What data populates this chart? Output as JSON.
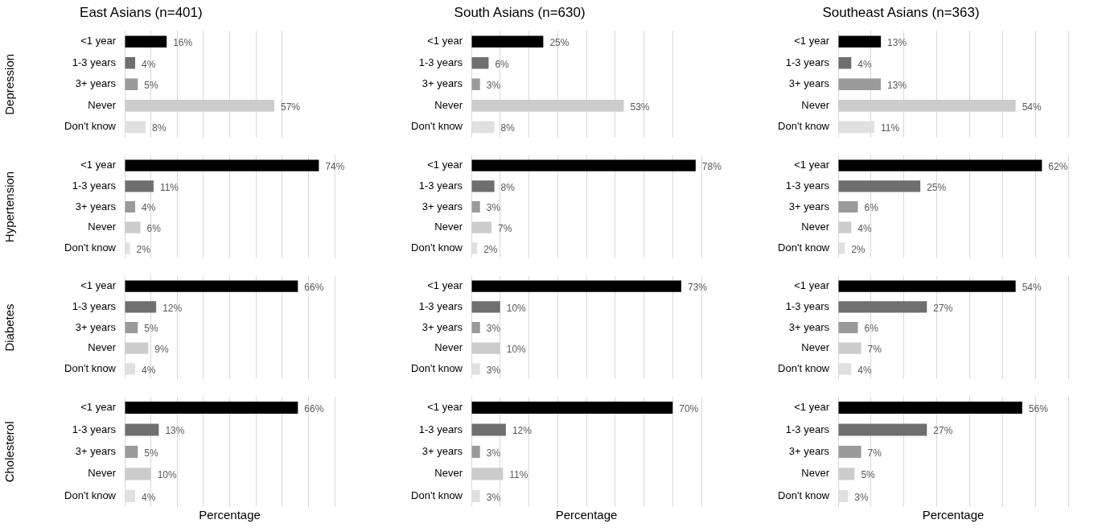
{
  "chart_data": [
    {
      "type": "bar",
      "orientation": "horizontal",
      "title": "East Asians (n=401)",
      "ylabel": "Depression",
      "categories": [
        "<1 year",
        "1-3 years",
        "3+ years",
        "Never",
        "Don't know"
      ],
      "values": [
        16,
        4,
        5,
        57,
        8
      ],
      "value_labels": [
        "16%",
        "4%",
        "5%",
        "57%",
        "8%"
      ],
      "colors": [
        "#000000",
        "#6f6f6f",
        "#9a9a9a",
        "#cccccc",
        "#e0e0e0"
      ],
      "xlim": [
        0,
        60
      ],
      "xticks": [
        {
          "value": 0,
          "label": null
        },
        {
          "value": 10,
          "label": null
        },
        {
          "value": 20,
          "label": null
        },
        {
          "value": 30,
          "label": null
        },
        {
          "value": 40,
          "label": null
        },
        {
          "value": 50,
          "label": null
        },
        {
          "value": 60,
          "label": null
        }
      ],
      "grid": "x",
      "tick_labels": "y"
    },
    {
      "type": "bar",
      "orientation": "horizontal",
      "title": "South Asians (n=630)",
      "categories": [
        "<1 year",
        "1-3 years",
        "3+ years",
        "Never",
        "Don't know"
      ],
      "values": [
        25,
        6,
        3,
        53,
        8
      ],
      "value_labels": [
        "25%",
        "6%",
        "3%",
        "53%",
        "8%"
      ],
      "colors": [
        "#000000",
        "#6f6f6f",
        "#9a9a9a",
        "#cccccc",
        "#e0e0e0"
      ],
      "xlim": [
        0,
        70
      ],
      "xticks": [
        {
          "value": 0,
          "label": null
        },
        {
          "value": 10,
          "label": null
        },
        {
          "value": 20,
          "label": null
        },
        {
          "value": 30,
          "label": null
        },
        {
          "value": 40,
          "label": null
        },
        {
          "value": 50,
          "label": null
        },
        {
          "value": 60,
          "label": null
        },
        {
          "value": 70,
          "label": null
        }
      ],
      "grid": "x",
      "tick_labels": "y"
    },
    {
      "type": "bar",
      "orientation": "horizontal",
      "title": "Southeast Asians (n=363)",
      "categories": [
        "<1 year",
        "1-3 years",
        "3+ years",
        "Never",
        "Don't know"
      ],
      "values": [
        13,
        4,
        13,
        54,
        11
      ],
      "value_labels": [
        "13%",
        "4%",
        "13%",
        "54%",
        "11%"
      ],
      "colors": [
        "#000000",
        "#6f6f6f",
        "#9a9a9a",
        "#cccccc",
        "#e0e0e0"
      ],
      "xlim": [
        0,
        70
      ],
      "xticks": [
        {
          "value": 0,
          "label": null
        },
        {
          "value": 10,
          "label": null
        },
        {
          "value": 20,
          "label": null
        },
        {
          "value": 30,
          "label": null
        },
        {
          "value": 40,
          "label": null
        },
        {
          "value": 50,
          "label": null
        },
        {
          "value": 60,
          "label": null
        },
        {
          "value": 70,
          "label": null
        }
      ],
      "grid": "x",
      "tick_labels": "y"
    },
    {
      "type": "bar",
      "orientation": "horizontal",
      "ylabel": "Hypertension",
      "categories": [
        "<1 year",
        "1-3 years",
        "3+ years",
        "Never",
        "Don't know"
      ],
      "values": [
        74,
        11,
        4,
        6,
        2
      ],
      "value_labels": [
        "74%",
        "11%",
        "4%",
        "6%",
        "2%"
      ],
      "colors": [
        "#000000",
        "#6f6f6f",
        "#9a9a9a",
        "#cccccc",
        "#e0e0e0"
      ],
      "xlim": [
        0,
        80
      ],
      "xticks": [
        {
          "value": 0,
          "label": null
        },
        {
          "value": 10,
          "label": null
        },
        {
          "value": 20,
          "label": null
        },
        {
          "value": 30,
          "label": null
        },
        {
          "value": 40,
          "label": null
        },
        {
          "value": 50,
          "label": null
        },
        {
          "value": 60,
          "label": null
        },
        {
          "value": 70,
          "label": null
        },
        {
          "value": 80,
          "label": null
        }
      ],
      "grid": "x",
      "tick_labels": "y"
    },
    {
      "type": "bar",
      "orientation": "horizontal",
      "categories": [
        "<1 year",
        "1-3 years",
        "3+ years",
        "Never",
        "Don't know"
      ],
      "values": [
        78,
        8,
        3,
        7,
        2
      ],
      "value_labels": [
        "78%",
        "8%",
        "3%",
        "7%",
        "2%"
      ],
      "colors": [
        "#000000",
        "#6f6f6f",
        "#9a9a9a",
        "#cccccc",
        "#e0e0e0"
      ],
      "xlim": [
        0,
        80
      ],
      "xticks": [
        {
          "value": 0,
          "label": null
        },
        {
          "value": 10,
          "label": null
        },
        {
          "value": 20,
          "label": null
        },
        {
          "value": 30,
          "label": null
        },
        {
          "value": 40,
          "label": null
        },
        {
          "value": 50,
          "label": null
        },
        {
          "value": 60,
          "label": null
        },
        {
          "value": 70,
          "label": null
        },
        {
          "value": 80,
          "label": null
        }
      ],
      "grid": "x",
      "tick_labels": "y"
    },
    {
      "type": "bar",
      "orientation": "horizontal",
      "categories": [
        "<1 year",
        "1-3 years",
        "3+ years",
        "Never",
        "Don't know"
      ],
      "values": [
        62,
        25,
        6,
        4,
        2
      ],
      "value_labels": [
        "62%",
        "25%",
        "6%",
        "4%",
        "2%"
      ],
      "colors": [
        "#000000",
        "#6f6f6f",
        "#9a9a9a",
        "#cccccc",
        "#e0e0e0"
      ],
      "xlim": [
        0,
        70
      ],
      "xticks": [
        {
          "value": 0,
          "label": null
        },
        {
          "value": 10,
          "label": null
        },
        {
          "value": 20,
          "label": null
        },
        {
          "value": 30,
          "label": null
        },
        {
          "value": 40,
          "label": null
        },
        {
          "value": 50,
          "label": null
        },
        {
          "value": 60,
          "label": null
        },
        {
          "value": 70,
          "label": null
        }
      ],
      "grid": "x",
      "tick_labels": "y"
    },
    {
      "type": "bar",
      "orientation": "horizontal",
      "ylabel": "Diabetes",
      "categories": [
        "<1 year",
        "1-3 years",
        "3+ years",
        "Never",
        "Don't know"
      ],
      "values": [
        66,
        12,
        5,
        9,
        4
      ],
      "value_labels": [
        "66%",
        "12%",
        "5%",
        "9%",
        "4%"
      ],
      "colors": [
        "#000000",
        "#6f6f6f",
        "#9a9a9a",
        "#cccccc",
        "#e0e0e0"
      ],
      "xlim": [
        0,
        80
      ],
      "xticks": [
        {
          "value": 0,
          "label": null
        },
        {
          "value": 10,
          "label": null
        },
        {
          "value": 20,
          "label": null
        },
        {
          "value": 30,
          "label": null
        },
        {
          "value": 40,
          "label": null
        },
        {
          "value": 50,
          "label": null
        },
        {
          "value": 60,
          "label": null
        },
        {
          "value": 70,
          "label": null
        },
        {
          "value": 80,
          "label": null
        }
      ],
      "grid": "x",
      "tick_labels": "y"
    },
    {
      "type": "bar",
      "orientation": "horizontal",
      "categories": [
        "<1 year",
        "1-3 years",
        "3+ years",
        "Never",
        "Don't know"
      ],
      "values": [
        73,
        10,
        3,
        10,
        3
      ],
      "value_labels": [
        "73%",
        "10%",
        "3%",
        "10%",
        "3%"
      ],
      "colors": [
        "#000000",
        "#6f6f6f",
        "#9a9a9a",
        "#cccccc",
        "#e0e0e0"
      ],
      "xlim": [
        0,
        80
      ],
      "xticks": [
        {
          "value": 0,
          "label": null
        },
        {
          "value": 10,
          "label": null
        },
        {
          "value": 20,
          "label": null
        },
        {
          "value": 30,
          "label": null
        },
        {
          "value": 40,
          "label": null
        },
        {
          "value": 50,
          "label": null
        },
        {
          "value": 60,
          "label": null
        },
        {
          "value": 70,
          "label": null
        },
        {
          "value": 80,
          "label": null
        }
      ],
      "grid": "x",
      "tick_labels": "y"
    },
    {
      "type": "bar",
      "orientation": "horizontal",
      "categories": [
        "<1 year",
        "1-3 years",
        "3+ years",
        "Never",
        "Don't know"
      ],
      "values": [
        54,
        27,
        6,
        7,
        4
      ],
      "value_labels": [
        "54%",
        "27%",
        "6%",
        "7%",
        "4%"
      ],
      "colors": [
        "#000000",
        "#6f6f6f",
        "#9a9a9a",
        "#cccccc",
        "#e0e0e0"
      ],
      "xlim": [
        0,
        70
      ],
      "xticks": [
        {
          "value": 0,
          "label": null
        },
        {
          "value": 10,
          "label": null
        },
        {
          "value": 20,
          "label": null
        },
        {
          "value": 30,
          "label": null
        },
        {
          "value": 40,
          "label": null
        },
        {
          "value": 50,
          "label": null
        },
        {
          "value": 60,
          "label": null
        },
        {
          "value": 70,
          "label": null
        }
      ],
      "grid": "x",
      "tick_labels": "y"
    },
    {
      "type": "bar",
      "orientation": "horizontal",
      "ylabel": "Cholesterol",
      "xlabel": "Percentage",
      "categories": [
        "<1 year",
        "1-3 years",
        "3+ years",
        "Never",
        "Don't know"
      ],
      "values": [
        66,
        13,
        5,
        10,
        4
      ],
      "value_labels": [
        "66%",
        "13%",
        "5%",
        "10%",
        "4%"
      ],
      "colors": [
        "#000000",
        "#6f6f6f",
        "#9a9a9a",
        "#cccccc",
        "#e0e0e0"
      ],
      "xlim": [
        0,
        80
      ],
      "xticks": [
        {
          "value": 0,
          "label": null
        },
        {
          "value": 10,
          "label": null
        },
        {
          "value": 20,
          "label": null
        },
        {
          "value": 30,
          "label": null
        },
        {
          "value": 40,
          "label": null
        },
        {
          "value": 50,
          "label": null
        },
        {
          "value": 60,
          "label": null
        },
        {
          "value": 70,
          "label": null
        },
        {
          "value": 80,
          "label": null
        }
      ],
      "grid": "x",
      "tick_labels": "y"
    },
    {
      "type": "bar",
      "orientation": "horizontal",
      "xlabel": "Percentage",
      "categories": [
        "<1 year",
        "1-3 years",
        "3+ years",
        "Never",
        "Don't know"
      ],
      "values": [
        70,
        12,
        3,
        11,
        3
      ],
      "value_labels": [
        "70%",
        "12%",
        "3%",
        "11%",
        "3%"
      ],
      "colors": [
        "#000000",
        "#6f6f6f",
        "#9a9a9a",
        "#cccccc",
        "#e0e0e0"
      ],
      "xlim": [
        0,
        80
      ],
      "xticks": [
        {
          "value": 0,
          "label": null
        },
        {
          "value": 10,
          "label": null
        },
        {
          "value": 20,
          "label": null
        },
        {
          "value": 30,
          "label": null
        },
        {
          "value": 40,
          "label": null
        },
        {
          "value": 50,
          "label": null
        },
        {
          "value": 60,
          "label": null
        },
        {
          "value": 70,
          "label": null
        },
        {
          "value": 80,
          "label": null
        }
      ],
      "grid": "x",
      "tick_labels": "y"
    },
    {
      "type": "bar",
      "orientation": "horizontal",
      "xlabel": "Percentage",
      "categories": [
        "<1 year",
        "1-3 years",
        "3+ years",
        "Never",
        "Don't know"
      ],
      "values": [
        56,
        27,
        7,
        5,
        3
      ],
      "value_labels": [
        "56%",
        "27%",
        "7%",
        "5%",
        "3%"
      ],
      "colors": [
        "#000000",
        "#6f6f6f",
        "#9a9a9a",
        "#cccccc",
        "#e0e0e0"
      ],
      "xlim": [
        0,
        70
      ],
      "xticks": [
        {
          "value": 0,
          "label": null
        },
        {
          "value": 10,
          "label": null
        },
        {
          "value": 20,
          "label": null
        },
        {
          "value": 30,
          "label": null
        },
        {
          "value": 40,
          "label": null
        },
        {
          "value": 50,
          "label": null
        },
        {
          "value": 60,
          "label": null
        },
        {
          "value": 70,
          "label": null
        }
      ],
      "grid": "x",
      "tick_labels": "y"
    }
  ]
}
